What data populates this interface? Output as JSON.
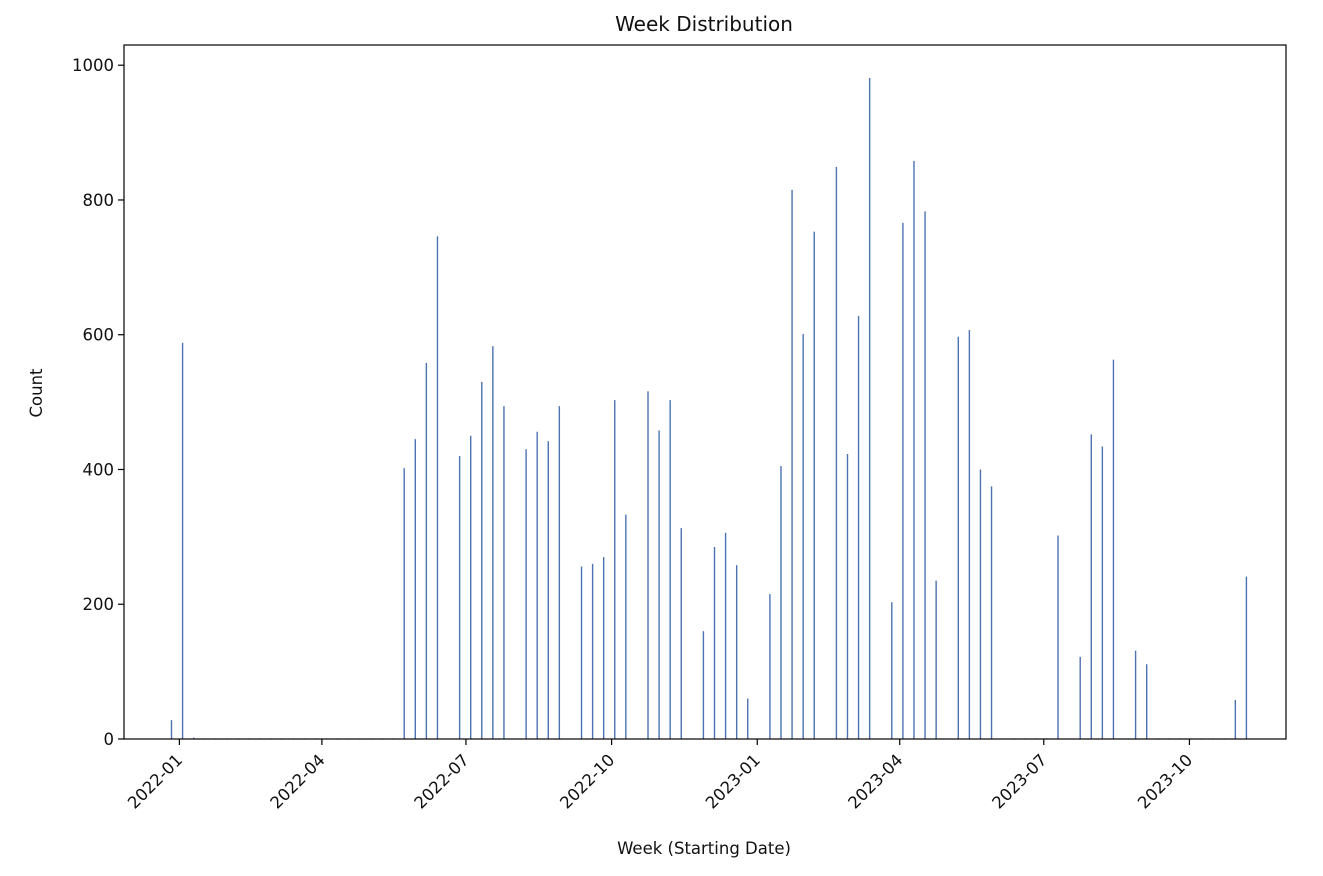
{
  "chart_data": {
    "type": "bar",
    "title": "Week Distribution",
    "xlabel": "Week (Starting Date)",
    "ylabel": "Count",
    "ylim": [
      0,
      1030
    ],
    "xlim": [
      "2021-11-27",
      "2023-12-01"
    ],
    "grid": false,
    "legend": "none",
    "bar_color": "#4c72b0",
    "y_ticks": [
      0,
      200,
      400,
      600,
      800,
      1000
    ],
    "x_ticks": [
      {
        "date": "2022-01-01",
        "label": "2022-01"
      },
      {
        "date": "2022-04-01",
        "label": "2022-04"
      },
      {
        "date": "2022-07-01",
        "label": "2022-07"
      },
      {
        "date": "2022-10-01",
        "label": "2022-10"
      },
      {
        "date": "2023-01-01",
        "label": "2023-01"
      },
      {
        "date": "2023-04-01",
        "label": "2023-04"
      },
      {
        "date": "2023-07-01",
        "label": "2023-07"
      },
      {
        "date": "2023-10-01",
        "label": "2023-10"
      }
    ],
    "x": [
      "2021-12-27",
      "2022-01-03",
      "2022-01-10",
      "2022-01-17",
      "2022-01-24",
      "2022-01-31",
      "2022-02-07",
      "2022-02-14",
      "2022-02-21",
      "2022-02-28",
      "2022-03-07",
      "2022-03-14",
      "2022-03-21",
      "2022-03-28",
      "2022-04-04",
      "2022-04-11",
      "2022-04-18",
      "2022-04-25",
      "2022-05-02",
      "2022-05-09",
      "2022-05-16",
      "2022-05-23",
      "2022-05-30",
      "2022-06-06",
      "2022-06-13",
      "2022-06-20",
      "2022-06-27",
      "2022-07-04",
      "2022-07-11",
      "2022-07-18",
      "2022-07-25",
      "2022-08-01",
      "2022-08-08",
      "2022-08-15",
      "2022-08-22",
      "2022-08-29",
      "2022-09-05",
      "2022-09-12",
      "2022-09-19",
      "2022-09-26",
      "2022-10-03",
      "2022-10-10",
      "2022-10-17",
      "2022-10-24",
      "2022-10-31",
      "2022-11-07",
      "2022-11-14",
      "2022-11-21",
      "2022-11-28",
      "2022-12-05",
      "2022-12-12",
      "2022-12-19",
      "2022-12-26",
      "2023-01-02",
      "2023-01-09",
      "2023-01-16",
      "2023-01-23",
      "2023-01-30",
      "2023-02-06",
      "2023-02-13",
      "2023-02-20",
      "2023-02-27",
      "2023-03-06",
      "2023-03-13",
      "2023-03-20",
      "2023-03-27",
      "2023-04-03",
      "2023-04-10",
      "2023-04-17",
      "2023-04-24",
      "2023-05-01",
      "2023-05-08",
      "2023-05-15",
      "2023-05-22",
      "2023-05-29",
      "2023-06-05",
      "2023-06-12",
      "2023-06-19",
      "2023-06-26",
      "2023-07-03",
      "2023-07-10",
      "2023-07-17",
      "2023-07-24",
      "2023-07-31",
      "2023-08-07",
      "2023-08-14",
      "2023-08-21",
      "2023-08-28",
      "2023-09-04",
      "2023-09-11",
      "2023-09-18",
      "2023-09-25",
      "2023-10-02",
      "2023-10-09",
      "2023-10-16",
      "2023-10-23",
      "2023-10-30",
      "2023-11-06"
    ],
    "values": [
      28,
      588,
      2,
      1,
      1,
      1,
      1,
      1,
      1,
      1,
      1,
      1,
      1,
      1,
      1,
      1,
      1,
      1,
      1,
      1,
      1,
      402,
      445,
      558,
      746,
      0,
      420,
      450,
      530,
      583,
      494,
      0,
      430,
      456,
      442,
      494,
      0,
      256,
      260,
      270,
      503,
      333,
      0,
      516,
      458,
      503,
      313,
      0,
      160,
      285,
      306,
      258,
      60,
      0,
      215,
      405,
      815,
      601,
      753,
      0,
      849,
      423,
      628,
      981,
      0,
      203,
      766,
      858,
      783,
      235,
      0,
      597,
      607,
      400,
      375,
      0,
      1,
      1,
      1,
      1,
      302,
      0,
      122,
      452,
      434,
      563,
      0,
      131,
      111,
      1,
      1,
      1,
      1,
      1,
      1,
      1,
      58,
      241
    ]
  }
}
